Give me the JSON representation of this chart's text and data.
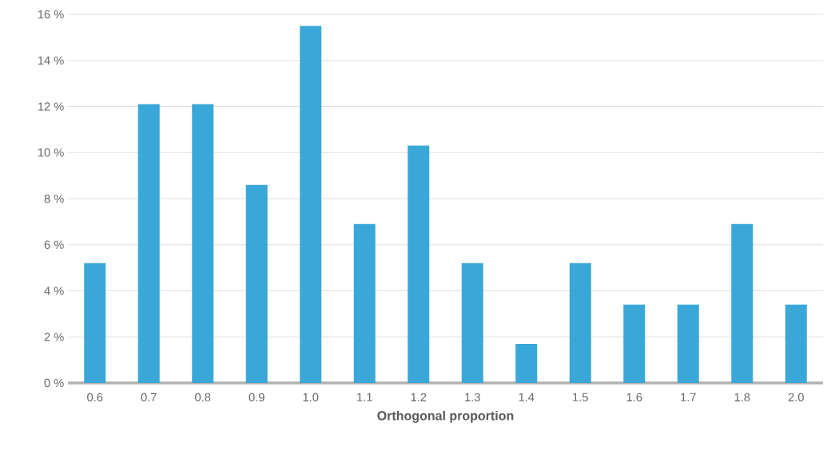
{
  "chart_data": {
    "type": "bar",
    "xlabel": "Orthogonal proportion",
    "categories": [
      "0.6",
      "0.7",
      "0.8",
      "0.9",
      "1.0",
      "1.1",
      "1.2",
      "1.3",
      "1.4",
      "1.5",
      "1.6",
      "1.7",
      "1.8",
      "2.0"
    ],
    "values": [
      5.2,
      12.1,
      12.1,
      8.6,
      15.5,
      6.9,
      10.3,
      5.2,
      1.7,
      5.2,
      3.4,
      3.4,
      6.9,
      3.4
    ],
    "color": "#3aa7d9",
    "ylim": [
      0,
      16
    ],
    "yticks": [
      {
        "value": 0,
        "label": "0 %"
      },
      {
        "value": 2,
        "label": "2 %"
      },
      {
        "value": 4,
        "label": "4 %"
      },
      {
        "value": 6,
        "label": "6 %"
      },
      {
        "value": 8,
        "label": "8 %"
      },
      {
        "value": 10,
        "label": "10 %"
      },
      {
        "value": 12,
        "label": "12 %"
      },
      {
        "value": 14,
        "label": "14 %"
      },
      {
        "value": 16,
        "label": "16 %"
      }
    ],
    "grid": "y"
  }
}
